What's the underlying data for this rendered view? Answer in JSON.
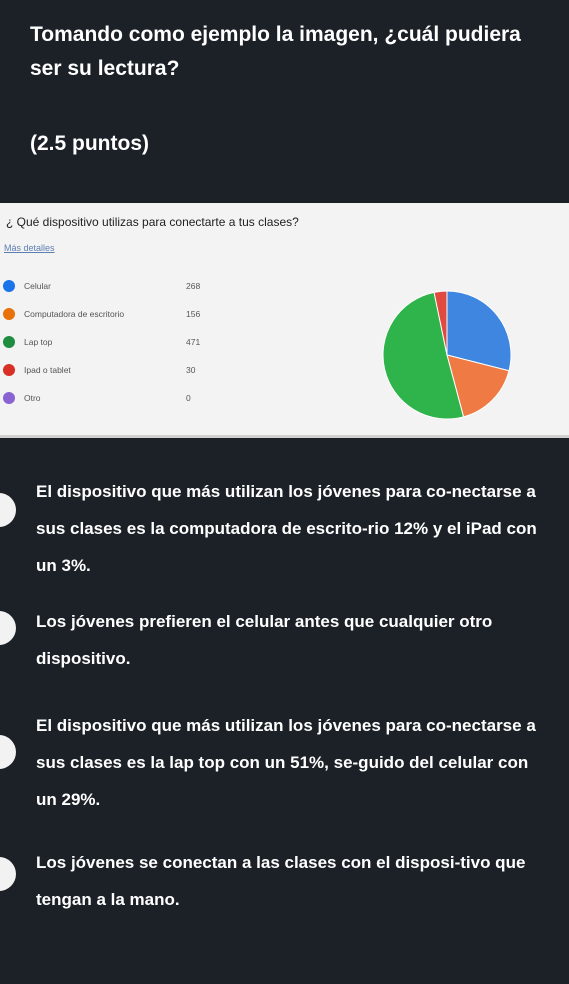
{
  "question": {
    "title": "Tomando como ejemplo la imagen, ¿cuál pudiera ser su lectura?",
    "points": "(2.5 puntos)"
  },
  "card": {
    "title": "¿ Qué dispositivo utilizas para conectarte a tus clases?",
    "more_link": "Más detalles",
    "legend": [
      {
        "label": "Celular",
        "value": "268",
        "color": "#1a73e8"
      },
      {
        "label": "Computadora de escritorio",
        "value": "156",
        "color": "#e8710a"
      },
      {
        "label": "Lap top",
        "value": "471",
        "color": "#1e8e3e"
      },
      {
        "label": "Ipad o tablet",
        "value": "30",
        "color": "#d93025"
      },
      {
        "label": "Otro",
        "value": "0",
        "color": "#8a63d2"
      }
    ]
  },
  "chart_data": {
    "type": "pie",
    "categories": [
      "Celular",
      "Computadora de escritorio",
      "Lap top",
      "Ipad o tablet",
      "Otro"
    ],
    "values": [
      268,
      156,
      471,
      30,
      0
    ],
    "colors": [
      "#3f86e0",
      "#f07a44",
      "#2fb34b",
      "#e04a3f",
      "#8a63d2"
    ],
    "start_angle_deg": 0,
    "direction": "clockwise"
  },
  "options": [
    {
      "text": "El dispositivo que más utilizan los jóvenes para co-nectarse a sus clases es la computadora de escrito-rio 12% y el iPad con un 3%."
    },
    {
      "text": "Los jóvenes prefieren el celular antes que cualquier otro dispositivo."
    },
    {
      "text": "El dispositivo que más utilizan los jóvenes para co-nectarse a sus clases es la lap top con un 51%, se-guido del celular con un 29%."
    },
    {
      "text": "Los jóvenes se conectan a las clases con el disposi-tivo que tengan a la mano."
    }
  ]
}
